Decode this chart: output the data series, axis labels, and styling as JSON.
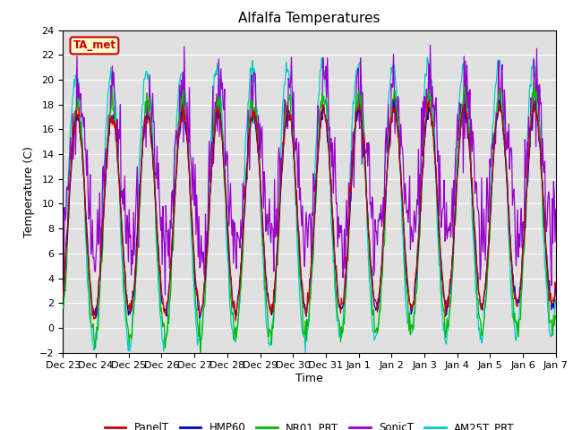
{
  "title": "Alfalfa Temperatures",
  "xlabel": "Time",
  "ylabel": "Temperature (C)",
  "ylim": [
    -2,
    24
  ],
  "yticks": [
    -2,
    0,
    2,
    4,
    6,
    8,
    10,
    12,
    14,
    16,
    18,
    20,
    22,
    24
  ],
  "xtick_labels": [
    "Dec 23",
    "Dec 24",
    "Dec 25",
    "Dec 26",
    "Dec 27",
    "Dec 28",
    "Dec 29",
    "Dec 30",
    "Dec 31",
    "Jan 1",
    "Jan 2",
    "Jan 3",
    "Jan 4",
    "Jan 5",
    "Jan 6",
    "Jan 7"
  ],
  "series_colors": {
    "PanelT": "#cc0000",
    "HMP60": "#0000cc",
    "NR01_PRT": "#00bb00",
    "SonicT": "#9900cc",
    "AM25T_PRT": "#00cccc"
  },
  "legend_labels": [
    "PanelT",
    "HMP60",
    "NR01_PRT",
    "SonicT",
    "AM25T_PRT"
  ],
  "annotation_text": "TA_met",
  "annotation_color": "#cc0000",
  "annotation_bg": "#ffffcc",
  "bg_color": "#e0e0e0",
  "grid_color": "#ffffff",
  "n_points": 672,
  "seed": 12345
}
